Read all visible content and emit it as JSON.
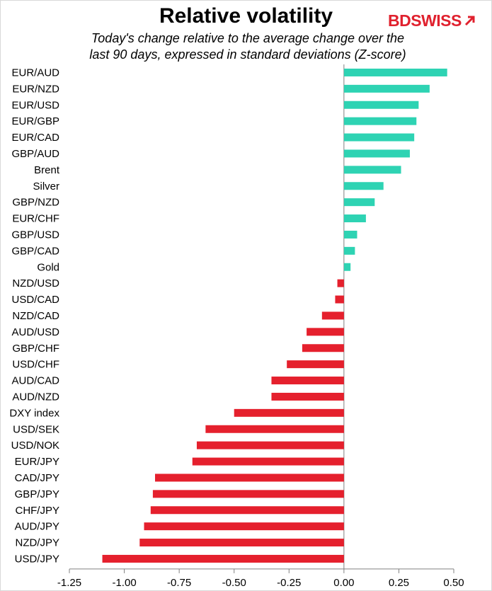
{
  "header": {
    "title": "Relative volatility",
    "subtitle_line1": "Today's change relative to the  average change over the",
    "subtitle_line2": "last 90 days, expressed in standard deviations (Z-score)",
    "logo_text": "BDSWISS"
  },
  "colors": {
    "positive": "#2ed3b3",
    "negative": "#e5202d",
    "axis": "#808080",
    "logo": "#e0212e"
  },
  "chart_data": {
    "type": "bar",
    "orientation": "horizontal",
    "title": "Relative volatility",
    "subtitle": "Today's change relative to the  average change over the last 90 days, expressed in standard deviations (Z-score)",
    "categories": [
      "EUR/AUD",
      "EUR/NZD",
      "EUR/USD",
      "EUR/GBP",
      "EUR/CAD",
      "GBP/AUD",
      "Brent",
      "Silver",
      "GBP/NZD",
      "EUR/CHF",
      "GBP/USD",
      "GBP/CAD",
      "Gold",
      "NZD/USD",
      "USD/CAD",
      "NZD/CAD",
      "AUD/USD",
      "GBP/CHF",
      "USD/CHF",
      "AUD/CAD",
      "AUD/NZD",
      "DXY index",
      "USD/SEK",
      "USD/NOK",
      "EUR/JPY",
      "CAD/JPY",
      "GBP/JPY",
      "CHF/JPY",
      "AUD/JPY",
      "NZD/JPY",
      "USD/JPY"
    ],
    "values": [
      0.47,
      0.39,
      0.34,
      0.33,
      0.32,
      0.3,
      0.26,
      0.18,
      0.14,
      0.1,
      0.06,
      0.05,
      0.03,
      -0.03,
      -0.04,
      -0.1,
      -0.17,
      -0.19,
      -0.26,
      -0.33,
      -0.33,
      -0.5,
      -0.63,
      -0.67,
      -0.69,
      -0.86,
      -0.87,
      -0.88,
      -0.91,
      -0.93,
      -1.1
    ],
    "xlim": [
      -1.25,
      0.5
    ],
    "xticks": [
      -1.25,
      -1.0,
      -0.75,
      -0.5,
      -0.25,
      0.0,
      0.25,
      0.5
    ],
    "xtick_labels": [
      "-1.25",
      "-1.00",
      "-0.75",
      "-0.50",
      "-0.25",
      "0.00",
      "0.25",
      "0.50"
    ],
    "grid": false,
    "legend": "none"
  }
}
